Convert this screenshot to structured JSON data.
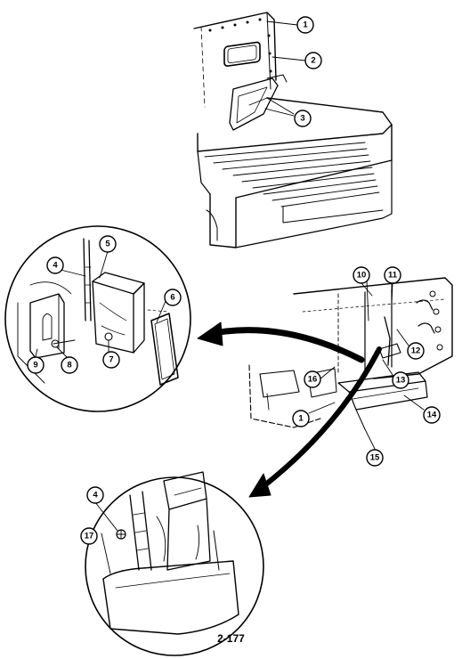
{
  "figure": {
    "callouts": [
      {
        "key": "c1a",
        "label": "1"
      },
      {
        "key": "c2",
        "label": "2"
      },
      {
        "key": "c3",
        "label": "3"
      },
      {
        "key": "c4a",
        "label": "4"
      },
      {
        "key": "c5",
        "label": "5"
      },
      {
        "key": "c6",
        "label": "6"
      },
      {
        "key": "c7",
        "label": "7"
      },
      {
        "key": "c8",
        "label": "8"
      },
      {
        "key": "c9",
        "label": "9"
      },
      {
        "key": "c10",
        "label": "10"
      },
      {
        "key": "c11",
        "label": "11"
      },
      {
        "key": "c12",
        "label": "12"
      },
      {
        "key": "c13",
        "label": "13"
      },
      {
        "key": "c14",
        "label": "14"
      },
      {
        "key": "c15",
        "label": "15"
      },
      {
        "key": "c16",
        "label": "16"
      },
      {
        "key": "c1b",
        "label": "1"
      },
      {
        "key": "c4b",
        "label": "4"
      },
      {
        "key": "c17",
        "label": "17"
      }
    ]
  },
  "page_number": "2-177"
}
